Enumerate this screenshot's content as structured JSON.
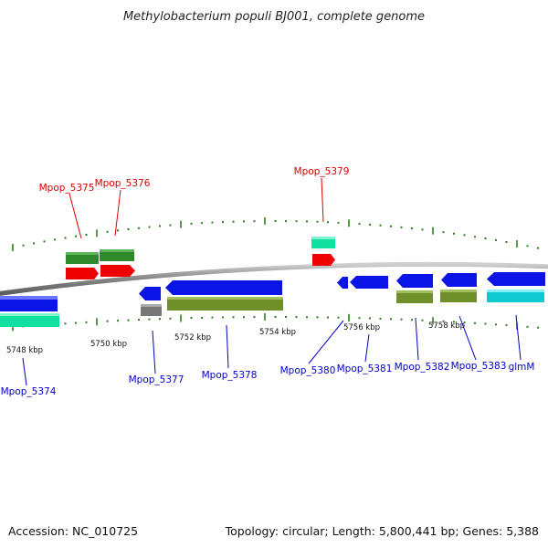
{
  "title": "Methylobacterium populi BJ001, complete genome",
  "footer": {
    "accession": "Accession: NC_010725",
    "summary": "Topology: circular; Length: 5,800,441 bp; Genes: 5,388"
  },
  "colors": {
    "backbone": "#8c8c8c",
    "tick": "#2e7d1f",
    "label_forward": "#dd0000",
    "label_reverse": "#0000cc",
    "gene_blue": "#0a14e6",
    "gene_red": "#ee0000",
    "gene_green": "#2f8a2c",
    "gene_teal": "#10e0a0",
    "gene_olive": "#6f8f2a",
    "gene_gray": "#777777",
    "gene_cyan": "#10c8d0"
  },
  "scale_labels": [
    "5748 kbp",
    "5750 kbp",
    "5752 kbp",
    "5754 kbp",
    "5756 kbp",
    "5758 kbp"
  ],
  "forward_genes": [
    {
      "name": "Mpop_5375"
    },
    {
      "name": "Mpop_5376"
    },
    {
      "name": "Mpop_5379"
    }
  ],
  "reverse_genes": [
    {
      "name": "Mpop_5374"
    },
    {
      "name": "Mpop_5377"
    },
    {
      "name": "Mpop_5378"
    },
    {
      "name": "Mpop_5380"
    },
    {
      "name": "Mpop_5381"
    },
    {
      "name": "Mpop_5382"
    },
    {
      "name": "Mpop_5383"
    },
    {
      "name": "glmM"
    }
  ]
}
